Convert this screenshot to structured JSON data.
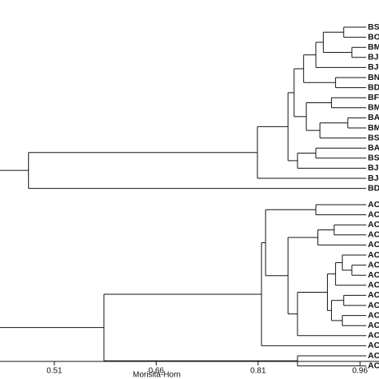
{
  "chart_data": {
    "type": "dendrogram",
    "x_label": "Morisita-Horn",
    "xlim": [
      0.43,
      0.988
    ],
    "xticks": [
      0.51,
      0.66,
      0.81,
      0.96
    ],
    "clusters": [
      {
        "height": 0.472,
        "children": [
          {
            "height": 0.809,
            "children": [
              {
                "height": 0.854,
                "children": [
                  {
                    "height": 0.863,
                    "children": [
                      {
                        "height": 0.877,
                        "children": [
                          {
                            "height": 0.895,
                            "children": [
                              {
                                "height": 0.906,
                                "children": [
                                  {
                                    "height": 0.936,
                                    "children": [
                                      {
                                        "label": "BSe"
                                      },
                                      {
                                        "label": "BOc"
                                      }
                                    ]
                                  },
                                  {
                                    "height": 0.948,
                                    "children": [
                                      {
                                        "label": "BMa"
                                      },
                                      {
                                        "label": "BJu"
                                      }
                                    ]
                                  }
                                ]
                              },
                              {
                                "label": "BJu"
                              }
                            ]
                          },
                          {
                            "height": 0.924,
                            "children": [
                              {
                                "label": "BNo"
                              },
                              {
                                "label": "BDe"
                              }
                            ]
                          }
                        ]
                      },
                      {
                        "height": 0.881,
                        "children": [
                          {
                            "height": 0.918,
                            "children": [
                              {
                                "label": "BFe"
                              },
                              {
                                "label": "BMa"
                              }
                            ]
                          },
                          {
                            "height": 0.901,
                            "children": [
                              {
                                "height": 0.942,
                                "children": [
                                  {
                                    "label": "BAp"
                                  },
                                  {
                                    "label": "BMa"
                                  }
                                ]
                              },
                              {
                                "label": "BSe"
                              }
                            ]
                          }
                        ]
                      }
                    ]
                  },
                  {
                    "height": 0.868,
                    "children": [
                      {
                        "height": 0.895,
                        "children": [
                          {
                            "label": "BAp"
                          },
                          {
                            "label": "BSe"
                          }
                        ]
                      },
                      {
                        "label": "BJu"
                      }
                    ]
                  }
                ]
              },
              {
                "label": "BJa"
              }
            ]
          },
          {
            "label": "BDe"
          }
        ]
      },
      {
        "height": 0.583,
        "children": [
          {
            "height": 0.815,
            "children": [
              {
                "height": 0.821,
                "children": [
                  {
                    "height": 0.895,
                    "children": [
                      {
                        "label": "ACS"
                      },
                      {
                        "label": "ACA"
                      }
                    ]
                  },
                  {
                    "height": 0.854,
                    "children": [
                      {
                        "height": 0.898,
                        "children": [
                          {
                            "height": 0.922,
                            "children": [
                              {
                                "label": "ACN"
                              },
                              {
                                "label": "ACD"
                              }
                            ]
                          },
                          {
                            "label": "ACJ"
                          }
                        ]
                      },
                      {
                        "height": 0.868,
                        "children": [
                          {
                            "height": 0.912,
                            "children": [
                              {
                                "height": 0.924,
                                "children": [
                                  {
                                    "height": 0.934,
                                    "children": [
                                      {
                                        "label": "ACF"
                                      },
                                      {
                                        "height": 0.948,
                                        "children": [
                                          {
                                            "label": "ACA"
                                          },
                                          {
                                            "label": "ACN"
                                          }
                                        ]
                                      }
                                    ]
                                  },
                                  {
                                    "label": "ACS"
                                  }
                                ]
                              },
                              {
                                "height": 0.918,
                                "children": [
                                  {
                                    "height": 0.936,
                                    "children": [
                                      {
                                        "label": "ACJ"
                                      },
                                      {
                                        "label": "ACN"
                                      }
                                    ]
                                  },
                                  {
                                    "height": 0.934,
                                    "children": [
                                      {
                                        "label": "ACN"
                                      },
                                      {
                                        "label": "ACJ"
                                      }
                                    ]
                                  }
                                ]
                              }
                            ]
                          },
                          {
                            "label": "ACS"
                          }
                        ]
                      }
                    ]
                  }
                ]
              },
              {
                "label": "ACJ"
              }
            ]
          },
          {
            "height": 0.868,
            "children": [
              {
                "label": "ACO"
              },
              {
                "label": "ACD"
              }
            ]
          }
        ]
      }
    ]
  }
}
